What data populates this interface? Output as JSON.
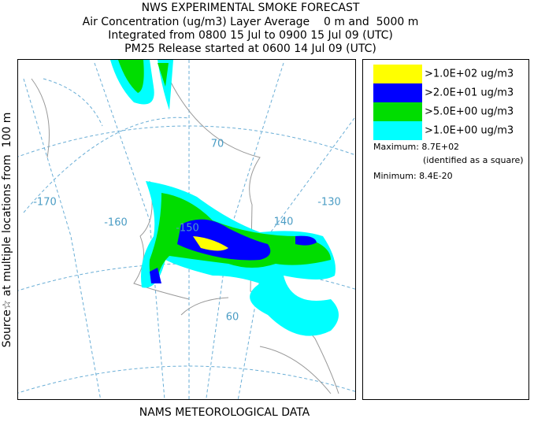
{
  "header": {
    "title": "NWS EXPERIMENTAL SMOKE FORECAST",
    "lines": [
      "Air Concentration (ug/m3) Layer Average    0 m and  5000 m",
      "Integrated from 0800 15 Jul to 0900 15 Jul 09 (UTC)",
      "PM25 Release started at 0600 14 Jul 09 (UTC)"
    ]
  },
  "side_label": "Source☆ at multiple locations from  100 m",
  "footer": "NAMS METEOROLOGICAL DATA",
  "legend": {
    "items": [
      {
        "label": ">1.0E+02 ug/m3",
        "color": "#ffff00"
      },
      {
        "label": ">2.0E+01 ug/m3",
        "color": "#0000ff"
      },
      {
        "label": ">5.0E+00 ug/m3",
        "color": "#00dd00"
      },
      {
        "label": ">1.0E+00 ug/m3",
        "color": "#00ffff"
      }
    ],
    "maximum": "Maximum: 8.7E+02",
    "maximum_note": "(identified as a square)",
    "minimum": "Minimum: 8.4E-20"
  },
  "map": {
    "labels": [
      "-170",
      "-160",
      "-150",
      "140",
      "-130",
      "70",
      "60"
    ]
  }
}
